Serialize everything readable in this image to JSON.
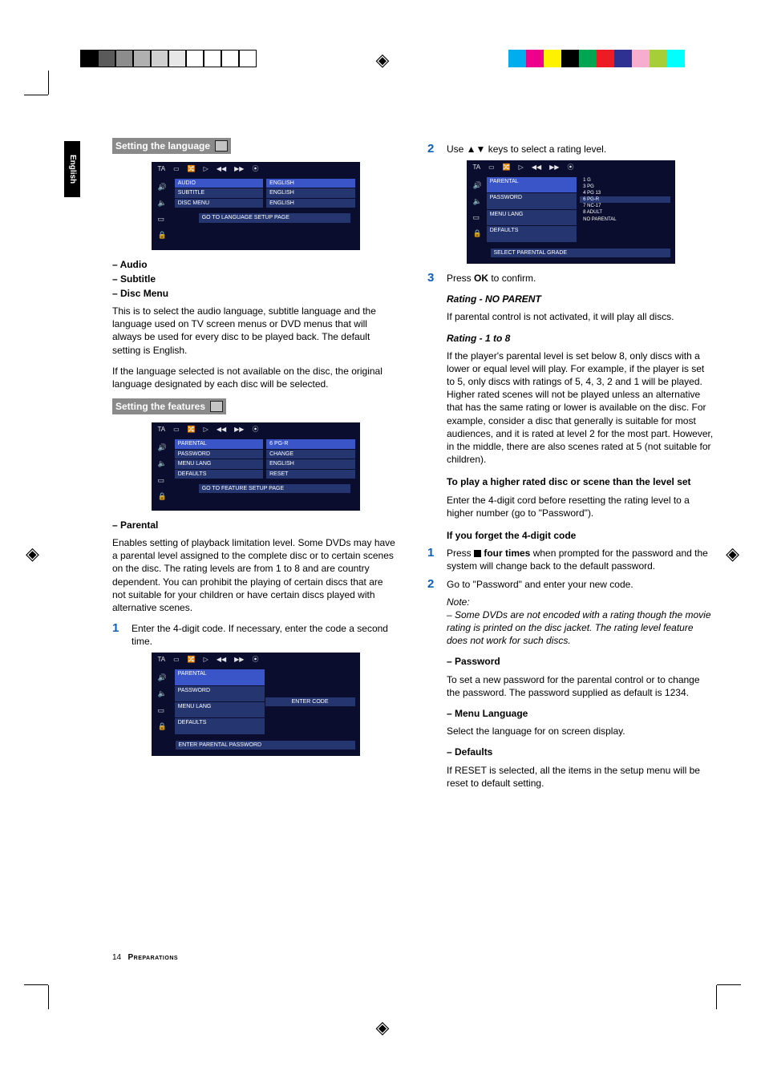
{
  "lang_tab": "English",
  "colorbar_left": [
    "#000000",
    "#5a5a5a",
    "#8c8c8c",
    "#b0b0b0",
    "#cfcfcf",
    "#e7e7e7",
    "#ffffff",
    "#ffffff",
    "#ffffff",
    "#ffffff"
  ],
  "colorbar_right": [
    "#00aeef",
    "#ec008c",
    "#fff200",
    "#000000",
    "#00a651",
    "#ed1c24",
    "#2e3192",
    "#f7adce",
    "#a6ce39",
    "#00ffff"
  ],
  "left": {
    "sect1_title": "Setting the language",
    "osd1_top": [
      "TA",
      "▭",
      "🔀",
      "▷",
      "◀◀",
      "▶▶",
      "⦿"
    ],
    "osd1_items": [
      [
        "AUDIO",
        "ENGLISH"
      ],
      [
        "SUBTITLE",
        "ENGLISH"
      ],
      [
        "DISC MENU",
        "ENGLISH"
      ]
    ],
    "osd1_foot": "GO TO LANGUAGE SETUP PAGE",
    "osd1_side": [
      "🔊",
      "🔈",
      "▭",
      "🔒"
    ],
    "bul1": "Audio",
    "bul2": "Subtitle",
    "bul3": "Disc Menu",
    "para1": "This is to select the audio language, subtitle language and the language used on TV screen menus or DVD menus that will always be used for every disc to be played back. The default setting is English.",
    "para2": "If the language selected is not available on the disc, the original language designated by each disc will be selected.",
    "sect2_title": "Setting the features",
    "osd2_items": [
      [
        "PARENTAL",
        "6 PG-R"
      ],
      [
        "PASSWORD",
        "CHANGE"
      ],
      [
        "MENU LANG",
        "ENGLISH"
      ],
      [
        "DEFAULTS",
        "RESET"
      ]
    ],
    "osd2_foot": "GO TO FEATURE SETUP PAGE",
    "bul4": "Parental",
    "para3": "Enables setting of playback limitation level. Some DVDs may have a parental level assigned to the complete disc or to certain scenes on the disc.  The rating levels are from 1 to 8 and are country dependent.  You can prohibit the playing of certain discs that are not suitable for your children or have certain discs played with alternative scenes.",
    "step1": "Enter the 4-digit code. If necessary, enter the code a second time.",
    "osd3_items": [
      [
        "PARENTAL",
        ""
      ],
      [
        "PASSWORD",
        ""
      ],
      [
        "MENU LANG",
        ""
      ],
      [
        "DEFAULTS",
        ""
      ]
    ],
    "osd3_right": "ENTER CODE",
    "osd3_foot": "ENTER PARENTAL PASSWORD"
  },
  "right": {
    "step2": "Use  ▲▼  keys to select a rating level.",
    "osd4_items": [
      "PARENTAL",
      "PASSWORD",
      "MENU LANG",
      "DEFAULTS"
    ],
    "osd4_right": [
      "1 G",
      "3 PG",
      "4 PG 13",
      "6 PG-R",
      "7 NC-17",
      "8 ADULT",
      "NO PARENTAL"
    ],
    "osd4_foot": "SELECT PARENTAL GRADE",
    "step3_a": "Press ",
    "step3_b": "OK",
    "step3_c": " to confirm.",
    "h_noparent": "Rating - NO PARENT",
    "p_noparent": "If parental control is not activated, it will play all discs.",
    "h_1to8": "Rating - 1 to 8",
    "p_1to8": "If the player's parental level is set below 8, only discs with a lower or equal level will play. For example, if the player is set to 5, only discs with ratings of 5, 4, 3, 2 and 1 will be played.  Higher rated scenes will not be played unless an alternative that has the same rating or lower is available on the disc. For example, consider a disc that generally is suitable for most audiences, and it is rated at level 2 for the most part. However, in the middle, there are also scenes rated at 5 (not suitable for children).",
    "h_higher": "To play a higher rated disc or scene than the level set",
    "p_higher": "Enter the 4-digit cord before resetting the rating level to a higher number (go to \"Password\").",
    "h_forget": "If you forget the 4-digit code",
    "forget_s1_a": "Press  ",
    "forget_s1_b": " four times",
    "forget_s1_c": " when prompted for the password and the system will change back to the default password.",
    "forget_s2": "Go to \"Password\" and enter your new code.",
    "note_head": "Note:",
    "note_body": "–   Some DVDs are not encoded with a rating though the movie rating is printed on the disc jacket.  The rating level feature does not work for such discs.",
    "h_password": "Password",
    "p_password": "To set a new password for the parental control or to change the password.  The password supplied as default is 1234.",
    "h_menulang": "Menu Language",
    "p_menulang": "Select the language for on screen display.",
    "h_defaults": "Defaults",
    "p_defaults": "If RESET is selected, all the items in the setup menu will be reset to default setting."
  },
  "footer_page": "14",
  "footer_label": "Preparations"
}
